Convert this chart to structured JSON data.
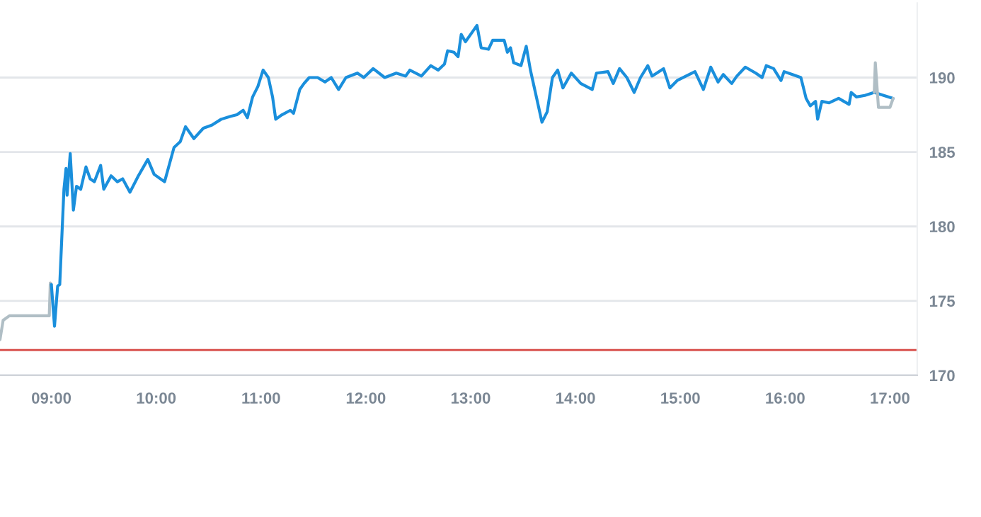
{
  "chart_data": {
    "type": "line",
    "series": [
      {
        "color": "#b0bec5",
        "x": [
          8.51,
          8.54,
          8.6,
          8.98,
          8.99,
          9.0
        ],
        "values": [
          172.4,
          173.7,
          174.0,
          174.0,
          176.2,
          176.1
        ]
      },
      {
        "color": "#1a8fdc",
        "x": [
          9.0,
          9.03,
          9.06,
          9.08,
          9.12,
          9.14,
          9.15,
          9.18,
          9.21,
          9.24,
          9.28,
          9.33,
          9.37,
          9.41,
          9.47,
          9.5,
          9.57,
          9.63,
          9.68,
          9.75,
          9.83,
          9.92,
          9.98,
          10.08,
          10.17,
          10.23,
          10.28,
          10.36,
          10.45,
          10.53,
          10.62,
          10.71,
          10.77,
          10.83,
          10.87,
          10.92,
          10.97,
          11.02,
          11.07,
          11.11,
          11.14,
          11.2,
          11.28,
          11.31,
          11.37,
          11.41,
          11.46,
          11.54,
          11.61,
          11.67,
          11.74,
          11.81,
          11.92,
          11.98,
          12.07,
          12.18,
          12.29,
          12.38,
          12.42,
          12.53,
          12.62,
          12.69,
          12.75,
          12.78,
          12.84,
          12.88,
          12.91,
          12.95,
          12.99,
          13.06,
          13.1,
          13.17,
          13.21,
          13.28,
          13.32,
          13.35,
          13.38,
          13.41,
          13.48,
          13.53,
          13.57,
          13.63,
          13.68,
          13.73,
          13.78,
          13.83,
          13.88,
          13.96,
          14.05,
          14.16,
          14.2,
          14.31,
          14.36,
          14.42,
          14.49,
          14.56,
          14.62,
          14.69,
          14.73,
          14.84,
          14.9,
          14.97,
          15.14,
          15.22,
          15.29,
          15.36,
          15.41,
          15.49,
          15.54,
          15.62,
          15.72,
          15.78,
          15.82,
          15.89,
          15.96,
          15.99,
          16.07,
          16.15,
          16.2,
          16.24,
          16.29,
          16.31,
          16.35,
          16.42,
          16.51,
          16.61,
          16.63,
          16.68,
          16.76,
          16.85,
          16.94,
          17.03
        ],
        "values": [
          176.1,
          173.3,
          176.0,
          176.1,
          182.5,
          183.9,
          182.1,
          184.9,
          181.1,
          182.7,
          182.5,
          184.0,
          183.2,
          183.0,
          184.1,
          182.5,
          183.4,
          183.0,
          183.2,
          182.3,
          183.4,
          184.5,
          183.5,
          183.0,
          185.3,
          185.7,
          186.7,
          185.9,
          186.6,
          186.8,
          187.2,
          187.4,
          187.5,
          187.8,
          187.3,
          188.7,
          189.4,
          190.5,
          190.0,
          188.7,
          187.2,
          187.5,
          187.8,
          187.6,
          189.2,
          189.6,
          190.0,
          190.0,
          189.7,
          190.0,
          189.2,
          190.0,
          190.3,
          190.0,
          190.6,
          190.0,
          190.3,
          190.1,
          190.5,
          190.1,
          190.8,
          190.5,
          190.9,
          191.8,
          191.7,
          191.4,
          192.9,
          192.4,
          192.8,
          193.5,
          192.0,
          191.9,
          192.5,
          192.5,
          192.5,
          191.7,
          192.0,
          191.0,
          190.8,
          192.1,
          190.5,
          188.6,
          187.0,
          187.7,
          190.0,
          190.5,
          189.3,
          190.3,
          189.6,
          189.2,
          190.3,
          190.4,
          189.6,
          190.6,
          190.0,
          189.0,
          190.0,
          190.8,
          190.1,
          190.6,
          189.3,
          189.8,
          190.4,
          189.2,
          190.7,
          189.7,
          190.2,
          189.6,
          190.1,
          190.7,
          190.3,
          190.0,
          190.8,
          190.6,
          189.8,
          190.4,
          190.2,
          190.0,
          188.6,
          188.1,
          188.4,
          187.2,
          188.4,
          188.3,
          188.6,
          188.2,
          189.0,
          188.7,
          188.8,
          189.0,
          188.8,
          188.6
        ]
      },
      {
        "color": "#b0bec5",
        "x": [
          16.85,
          16.86,
          16.89,
          17.0,
          17.03
        ],
        "values": [
          189.0,
          191.0,
          188.0,
          188.0,
          188.6
        ]
      }
    ],
    "xlim": [
      8.51,
      17.26
    ],
    "ylim": [
      170,
      195
    ],
    "xticks": [
      {
        "value": 9,
        "label": "09:00"
      },
      {
        "value": 10,
        "label": "10:00"
      },
      {
        "value": 11,
        "label": "11:00"
      },
      {
        "value": 12,
        "label": "12:00"
      },
      {
        "value": 13,
        "label": "13:00"
      },
      {
        "value": 14,
        "label": "14:00"
      },
      {
        "value": 15,
        "label": "15:00"
      },
      {
        "value": 16,
        "label": "16:00"
      },
      {
        "value": 17,
        "label": "17:00"
      }
    ],
    "yticks": [
      170,
      175,
      180,
      185,
      190
    ],
    "grid": "y",
    "marker": "none",
    "line_style": "solid",
    "ref_lines": [
      {
        "axis": "y",
        "value": 171.7,
        "color": "#d9534f"
      }
    ]
  }
}
